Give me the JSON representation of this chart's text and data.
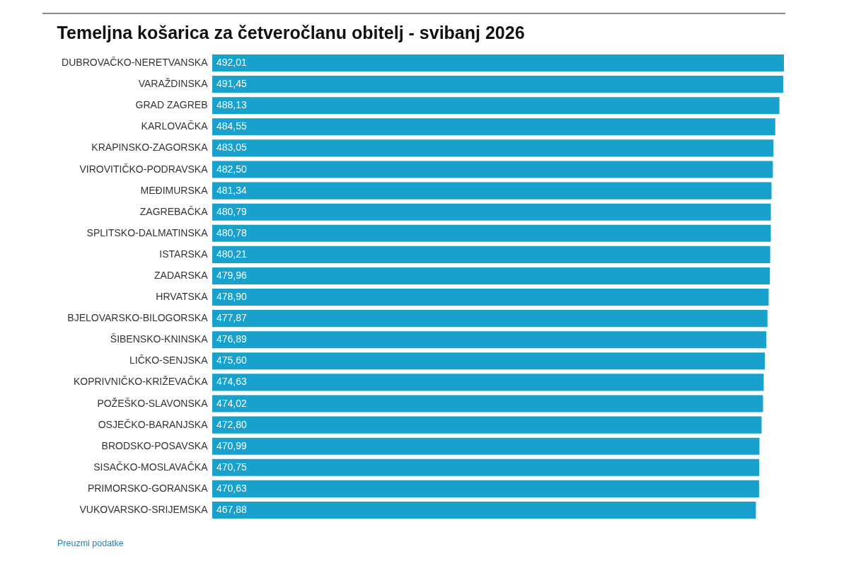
{
  "chart_data": {
    "type": "bar",
    "orientation": "horizontal",
    "title": "Temeljna košarica za četveročlanu obitelj - svibanj 2026",
    "categories": [
      "DUBROVAČKO-NERETVANSKA",
      "VARAŽDINSKA",
      "GRAD ZAGREB",
      "KARLOVAČKA",
      "KRAPINSKO-ZAGORSKA",
      "VIROVITIČKO-PODRAVSKA",
      "MEĐIMURSKA",
      "ZAGREBAČKA",
      "SPLITSKO-DALMATINSKA",
      "ISTARSKA",
      "ZADARSKA",
      "HRVATSKA",
      "BJELOVARSKO-BILOGORSKA",
      "ŠIBENSKO-KNINSKA",
      "LIČKO-SENJSKA",
      "KOPRIVNIČKO-KRIŽEVAČKA",
      "POŽEŠKO-SLAVONSKA",
      "OSJEČKO-BARANJSKA",
      "BRODSKO-POSAVSKA",
      "SISAČKO-MOSLAVAČKA",
      "PRIMORSKO-GORANSKA",
      "VUKOVARSKO-SRIJEMSKA"
    ],
    "values": [
      492.01,
      491.45,
      488.13,
      484.55,
      483.05,
      482.5,
      481.34,
      480.79,
      480.78,
      480.21,
      479.96,
      478.9,
      477.87,
      476.89,
      475.6,
      474.63,
      474.02,
      472.8,
      470.99,
      470.75,
      470.63,
      467.88
    ],
    "value_labels": [
      "492,01",
      "491,45",
      "488,13",
      "484,55",
      "483,05",
      "482,50",
      "481,34",
      "480,79",
      "480,78",
      "480,21",
      "479,96",
      "478,90",
      "477,87",
      "476,89",
      "475,60",
      "474,63",
      "474,02",
      "472,80",
      "470,99",
      "470,75",
      "470,63",
      "467,88"
    ],
    "color": "#18a1cd",
    "annotations": [
      "Preuzmi podatke"
    ]
  }
}
